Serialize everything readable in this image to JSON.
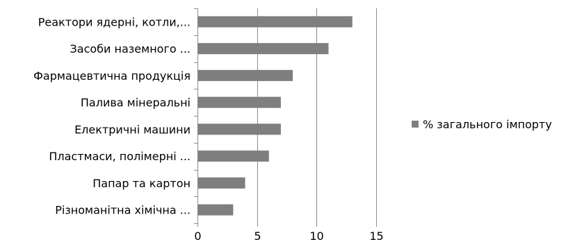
{
  "chart_data": {
    "type": "bar",
    "orientation": "horizontal",
    "categories": [
      "Реактори ядерні, котли,...",
      "Засоби наземного ...",
      "Фармацевтична продукція",
      "Палива мінеральні",
      "Електричні машини",
      "Пластмаси, полімерні ...",
      "Папар та картон",
      "Різноманітна хімічна ..."
    ],
    "series": [
      {
        "name": "% загального імпорту",
        "values": [
          13,
          11,
          8,
          7,
          7,
          6,
          4,
          3
        ],
        "color": "#7f7f7f"
      }
    ],
    "xlim": [
      0,
      15
    ],
    "xticks": [
      0,
      5,
      10,
      15
    ],
    "title": "",
    "xlabel": "",
    "ylabel": "",
    "grid": true,
    "legend_position": "right"
  }
}
